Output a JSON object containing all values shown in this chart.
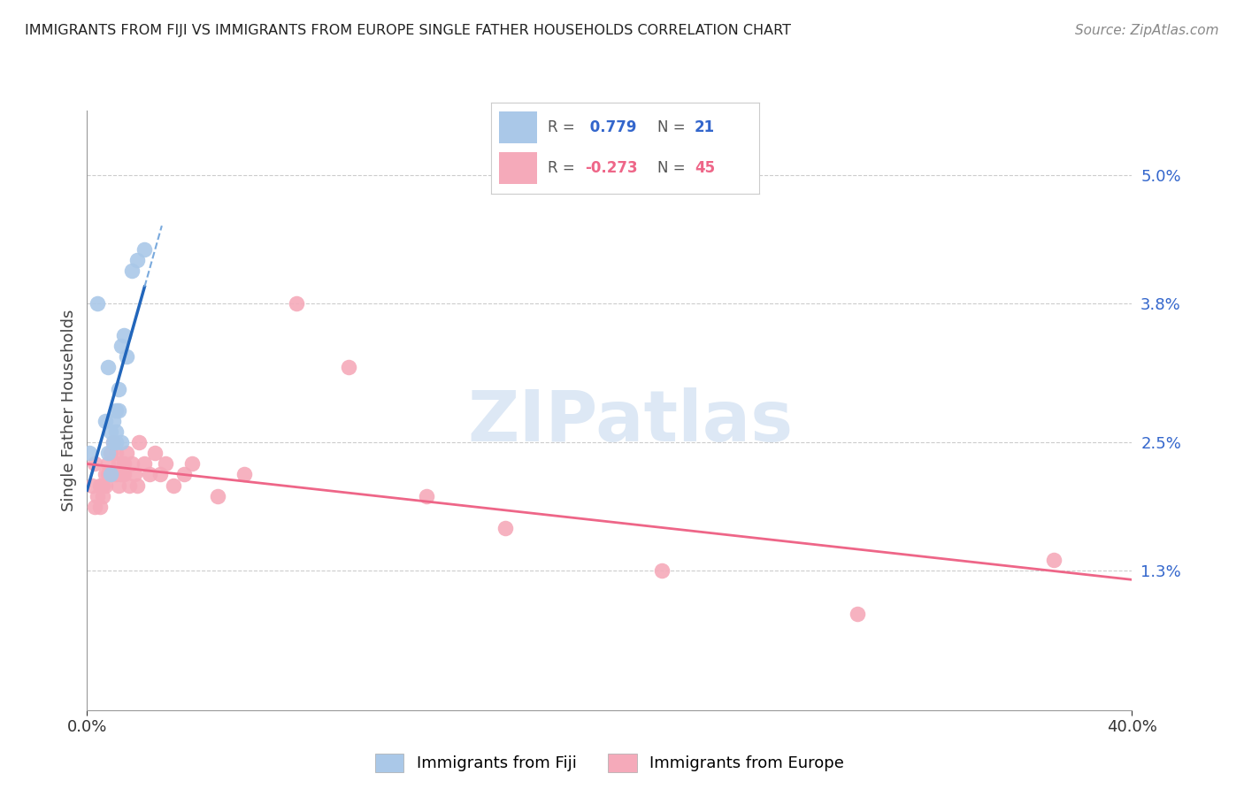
{
  "title": "IMMIGRANTS FROM FIJI VS IMMIGRANTS FROM EUROPE SINGLE FATHER HOUSEHOLDS CORRELATION CHART",
  "source": "Source: ZipAtlas.com",
  "ylabel": "Single Father Households",
  "right_yticks": [
    "5.0%",
    "3.8%",
    "2.5%",
    "1.3%"
  ],
  "right_ytick_vals": [
    0.05,
    0.038,
    0.025,
    0.013
  ],
  "fiji_color": "#aac8e8",
  "fiji_line_color": "#2266bb",
  "fiji_line_dash_color": "#7aaadd",
  "europe_color": "#f5aaba",
  "europe_line_color": "#ee6688",
  "xlim": [
    0.0,
    0.4
  ],
  "ylim": [
    0.0,
    0.056
  ],
  "background_color": "#ffffff",
  "grid_color": "#cccccc",
  "fiji_points_x": [
    0.001,
    0.004,
    0.007,
    0.008,
    0.008,
    0.009,
    0.009,
    0.01,
    0.01,
    0.011,
    0.011,
    0.011,
    0.012,
    0.012,
    0.013,
    0.013,
    0.014,
    0.015,
    0.017,
    0.019,
    0.022
  ],
  "fiji_points_y": [
    0.024,
    0.038,
    0.027,
    0.032,
    0.024,
    0.026,
    0.022,
    0.027,
    0.025,
    0.028,
    0.025,
    0.026,
    0.028,
    0.03,
    0.025,
    0.034,
    0.035,
    0.033,
    0.041,
    0.042,
    0.043
  ],
  "europe_points_x": [
    0.002,
    0.003,
    0.003,
    0.004,
    0.005,
    0.005,
    0.006,
    0.006,
    0.007,
    0.007,
    0.008,
    0.008,
    0.009,
    0.009,
    0.01,
    0.011,
    0.011,
    0.012,
    0.012,
    0.013,
    0.014,
    0.014,
    0.015,
    0.016,
    0.017,
    0.018,
    0.019,
    0.02,
    0.022,
    0.024,
    0.026,
    0.028,
    0.03,
    0.033,
    0.037,
    0.04,
    0.05,
    0.06,
    0.08,
    0.1,
    0.13,
    0.16,
    0.22,
    0.295,
    0.37
  ],
  "europe_points_y": [
    0.021,
    0.019,
    0.023,
    0.02,
    0.021,
    0.019,
    0.021,
    0.02,
    0.022,
    0.021,
    0.022,
    0.023,
    0.024,
    0.022,
    0.025,
    0.024,
    0.022,
    0.023,
    0.021,
    0.022,
    0.023,
    0.022,
    0.024,
    0.021,
    0.023,
    0.022,
    0.021,
    0.025,
    0.023,
    0.022,
    0.024,
    0.022,
    0.023,
    0.021,
    0.022,
    0.023,
    0.02,
    0.022,
    0.038,
    0.032,
    0.02,
    0.017,
    0.013,
    0.009,
    0.014
  ],
  "watermark": "ZIPatlas",
  "legend_r1": " 0.779",
  "legend_n1": "21",
  "legend_r2": "-0.273",
  "legend_n2": "45"
}
